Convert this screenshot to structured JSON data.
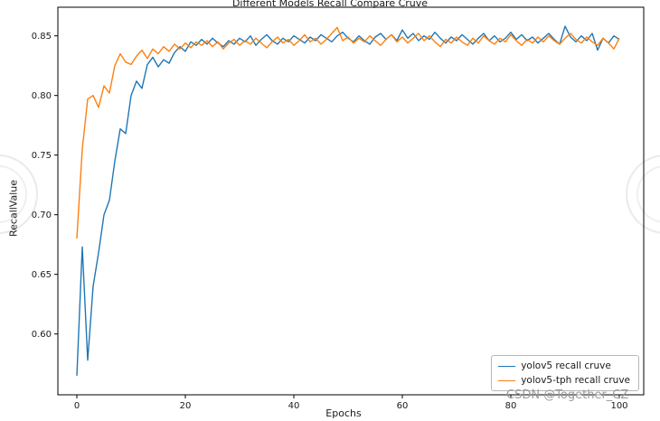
{
  "figure": {
    "watermark_text": "CSDN @Together_CZ"
  },
  "chart_data": {
    "type": "line",
    "title": "Different Models Recall Compare Cruve",
    "xlabel": "Epochs",
    "ylabel": "RecallValue",
    "xlim": [
      -3.5,
      104.5
    ],
    "ylim": [
      0.549,
      0.874
    ],
    "xticks": [
      0,
      20,
      40,
      60,
      80,
      100
    ],
    "xtick_labels": [
      "0",
      "20",
      "40",
      "60",
      "80",
      "100"
    ],
    "yticks": [
      0.6,
      0.65,
      0.7,
      0.75,
      0.8,
      0.85
    ],
    "ytick_labels": [
      "0.60",
      "0.65",
      "0.70",
      "0.75",
      "0.80",
      "0.85"
    ],
    "grid": false,
    "legend_position": "lower right",
    "x": [
      0,
      1,
      2,
      3,
      4,
      5,
      6,
      7,
      8,
      9,
      10,
      11,
      12,
      13,
      14,
      15,
      16,
      17,
      18,
      19,
      20,
      21,
      22,
      23,
      24,
      25,
      26,
      27,
      28,
      29,
      30,
      31,
      32,
      33,
      34,
      35,
      36,
      37,
      38,
      39,
      40,
      41,
      42,
      43,
      44,
      45,
      46,
      47,
      48,
      49,
      50,
      51,
      52,
      53,
      54,
      55,
      56,
      57,
      58,
      59,
      60,
      61,
      62,
      63,
      64,
      65,
      66,
      67,
      68,
      69,
      70,
      71,
      72,
      73,
      74,
      75,
      76,
      77,
      78,
      79,
      80,
      81,
      82,
      83,
      84,
      85,
      86,
      87,
      88,
      89,
      90,
      91,
      92,
      93,
      94,
      95,
      96,
      97,
      98,
      99,
      100
    ],
    "series": [
      {
        "name": "yolov5 recall cruve",
        "color": "#1f77b4",
        "values": [
          0.565,
          0.673,
          0.578,
          0.64,
          0.668,
          0.7,
          0.712,
          0.745,
          0.772,
          0.768,
          0.8,
          0.812,
          0.806,
          0.826,
          0.832,
          0.824,
          0.83,
          0.827,
          0.836,
          0.841,
          0.837,
          0.845,
          0.842,
          0.847,
          0.843,
          0.848,
          0.844,
          0.841,
          0.846,
          0.843,
          0.848,
          0.845,
          0.85,
          0.842,
          0.847,
          0.851,
          0.846,
          0.843,
          0.848,
          0.845,
          0.85,
          0.847,
          0.844,
          0.849,
          0.846,
          0.851,
          0.848,
          0.845,
          0.85,
          0.853,
          0.848,
          0.845,
          0.85,
          0.846,
          0.843,
          0.849,
          0.852,
          0.847,
          0.851,
          0.846,
          0.855,
          0.848,
          0.852,
          0.846,
          0.85,
          0.847,
          0.853,
          0.848,
          0.844,
          0.849,
          0.846,
          0.851,
          0.847,
          0.843,
          0.848,
          0.852,
          0.846,
          0.85,
          0.845,
          0.848,
          0.853,
          0.847,
          0.851,
          0.846,
          0.849,
          0.844,
          0.848,
          0.852,
          0.847,
          0.843,
          0.858,
          0.849,
          0.845,
          0.85,
          0.846,
          0.852,
          0.838,
          0.848,
          0.844,
          0.85,
          0.847
        ]
      },
      {
        "name": "yolov5-tph recall cruve",
        "color": "#ff7f0e",
        "values": [
          0.68,
          0.755,
          0.797,
          0.8,
          0.79,
          0.808,
          0.802,
          0.825,
          0.835,
          0.828,
          0.826,
          0.833,
          0.838,
          0.831,
          0.839,
          0.835,
          0.841,
          0.837,
          0.843,
          0.839,
          0.844,
          0.84,
          0.845,
          0.842,
          0.846,
          0.841,
          0.845,
          0.839,
          0.844,
          0.847,
          0.842,
          0.846,
          0.843,
          0.848,
          0.844,
          0.84,
          0.845,
          0.849,
          0.844,
          0.847,
          0.842,
          0.846,
          0.851,
          0.845,
          0.848,
          0.843,
          0.847,
          0.852,
          0.857,
          0.846,
          0.849,
          0.844,
          0.848,
          0.845,
          0.85,
          0.846,
          0.842,
          0.847,
          0.851,
          0.845,
          0.849,
          0.844,
          0.848,
          0.852,
          0.846,
          0.85,
          0.845,
          0.841,
          0.847,
          0.844,
          0.849,
          0.845,
          0.842,
          0.848,
          0.844,
          0.85,
          0.846,
          0.843,
          0.848,
          0.845,
          0.851,
          0.846,
          0.842,
          0.847,
          0.844,
          0.849,
          0.845,
          0.85,
          0.846,
          0.843,
          0.848,
          0.852,
          0.847,
          0.844,
          0.849,
          0.845,
          0.842,
          0.848,
          0.844,
          0.839,
          0.848
        ]
      }
    ]
  }
}
